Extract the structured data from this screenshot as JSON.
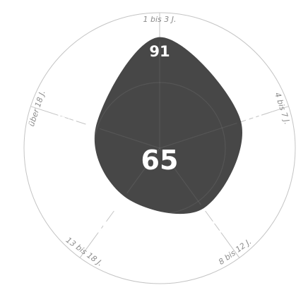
{
  "chart_data": {
    "type": "radar",
    "categories": [
      "1 bis 3 J.",
      "4 bis 7 J.",
      "8 bis 12 J.",
      "13 bis 18 J.",
      "über 18 J."
    ],
    "values": [
      91,
      70,
      61,
      49,
      55
    ],
    "center_value": "65",
    "colors": {
      "area": "#474747",
      "ring": "#c4c4c4",
      "value_text": "#ffffff",
      "category_text": "#8c8c8c"
    }
  }
}
